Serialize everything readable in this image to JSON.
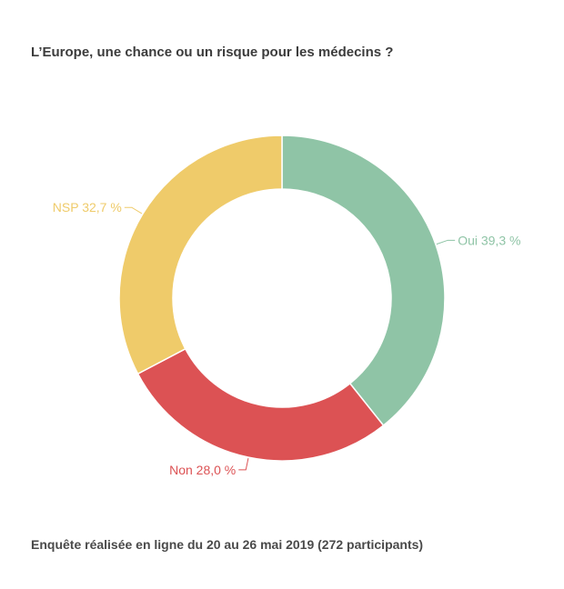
{
  "title": "L’Europe, une chance ou un risque pour les médecins ?",
  "footer": "Enquête réalisée en ligne du 20 au 26 mai 2019 (272 participants)",
  "chart_data": {
    "type": "pie",
    "variant": "donut",
    "title": "L’Europe, une chance ou un risque pour les médecins ?",
    "unit": "%",
    "slices": [
      {
        "label": "Oui",
        "value": 39.3,
        "display": "Oui 39,3 %",
        "color": "#8fc4a6"
      },
      {
        "label": "Non",
        "value": 28.0,
        "display": "Non 28,0 %",
        "color": "#dc5254"
      },
      {
        "label": "NSP",
        "value": 32.7,
        "display": "NSP 32,7 %",
        "color": "#efcb6a"
      }
    ],
    "start": "top",
    "direction": "clockwise",
    "legend": "none"
  }
}
